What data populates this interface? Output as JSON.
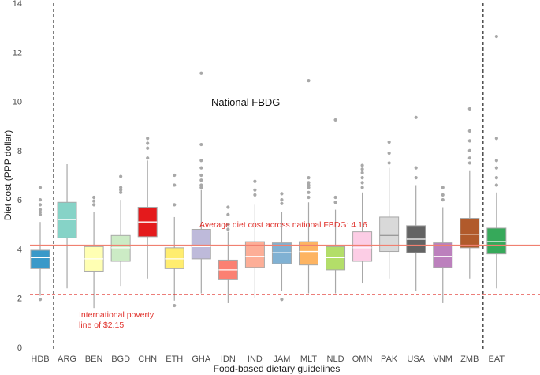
{
  "chart_data": {
    "type": "box",
    "xlabel": "Food-based dietary guidelines",
    "ylabel": "Diet cost (PPP dollar)",
    "ylim": [
      0,
      14
    ],
    "yticks": [
      0,
      2,
      4,
      6,
      8,
      10,
      12,
      14
    ],
    "grid": false,
    "categories": [
      "HDB",
      "ARG",
      "BEN",
      "BGD",
      "CHN",
      "ETH",
      "GHA",
      "IDN",
      "IND",
      "JAM",
      "MLT",
      "NLD",
      "OMN",
      "PAK",
      "USA",
      "VNM",
      "ZMB",
      "EAT"
    ],
    "boxes": [
      {
        "label": "HDB",
        "whisker_low": 2.1,
        "q1": 3.2,
        "median": 3.65,
        "q3": 3.95,
        "whisker_high": 5.1,
        "outliers": [
          1.95,
          5.4,
          5.5,
          5.6,
          5.8,
          6.0,
          6.5
        ],
        "color": "#3a99c9"
      },
      {
        "label": "ARG",
        "whisker_low": 2.4,
        "q1": 4.45,
        "median": 5.2,
        "q3": 5.9,
        "whisker_high": 7.45,
        "outliers": [],
        "color": "#86d3c7"
      },
      {
        "label": "BEN",
        "whisker_low": 1.6,
        "q1": 3.1,
        "median": 3.6,
        "q3": 4.1,
        "whisker_high": 5.5,
        "outliers": [
          5.8,
          5.95,
          6.1
        ],
        "color": "#ffffb3"
      },
      {
        "label": "BGD",
        "whisker_low": 2.5,
        "q1": 3.5,
        "median": 4.05,
        "q3": 4.55,
        "whisker_high": 6.0,
        "outliers": [
          6.3,
          6.4,
          6.5,
          6.95
        ],
        "color": "#ccebc5"
      },
      {
        "label": "CHN",
        "whisker_low": 2.8,
        "q1": 4.5,
        "median": 5.1,
        "q3": 5.7,
        "whisker_high": 7.6,
        "outliers": [
          7.7,
          8.1,
          8.3,
          8.5
        ],
        "color": "#e41a1c"
      },
      {
        "label": "ETH",
        "whisker_low": 1.9,
        "q1": 3.2,
        "median": 3.6,
        "q3": 4.05,
        "whisker_high": 5.3,
        "outliers": [
          1.7,
          5.8,
          6.6,
          7.0
        ],
        "color": "#ffed6f"
      },
      {
        "label": "GHA",
        "whisker_low": 2.2,
        "q1": 3.6,
        "median": 4.1,
        "q3": 4.8,
        "whisker_high": 6.4,
        "outliers": [
          6.5,
          6.6,
          6.8,
          7.0,
          7.3,
          7.6,
          8.25,
          11.15
        ],
        "color": "#bebada"
      },
      {
        "label": "IDN",
        "whisker_low": 1.8,
        "q1": 2.75,
        "median": 3.15,
        "q3": 3.55,
        "whisker_high": 4.7,
        "outliers": [
          4.8,
          5.0,
          5.4,
          5.7
        ],
        "color": "#fb8072"
      },
      {
        "label": "IND",
        "whisker_low": 2.0,
        "q1": 3.25,
        "median": 3.7,
        "q3": 4.3,
        "whisker_high": 5.8,
        "outliers": [
          6.2,
          6.4,
          6.75
        ],
        "color": "#fdae97"
      },
      {
        "label": "JAM",
        "whisker_low": 2.3,
        "q1": 3.4,
        "median": 3.85,
        "q3": 4.25,
        "whisker_high": 5.5,
        "outliers": [
          1.95,
          5.85,
          6.0,
          6.25
        ],
        "color": "#80b1d3"
      },
      {
        "label": "MLT",
        "whisker_low": 2.2,
        "q1": 3.35,
        "median": 3.9,
        "q3": 4.3,
        "whisker_high": 5.9,
        "outliers": [
          6.1,
          6.3,
          6.5,
          6.6,
          6.7,
          6.9,
          10.85
        ],
        "color": "#fdb462"
      },
      {
        "label": "NLD",
        "whisker_low": 2.2,
        "q1": 3.15,
        "median": 3.65,
        "q3": 4.1,
        "whisker_high": 5.6,
        "outliers": [
          5.9,
          6.1,
          9.25
        ],
        "color": "#b3de69"
      },
      {
        "label": "OMN",
        "whisker_low": 2.6,
        "q1": 3.5,
        "median": 4.05,
        "q3": 4.7,
        "whisker_high": 6.3,
        "outliers": [
          6.5,
          6.7,
          6.9,
          7.1,
          7.25,
          7.4
        ],
        "color": "#fccde5"
      },
      {
        "label": "PAK",
        "whisker_low": 2.8,
        "q1": 3.9,
        "median": 4.55,
        "q3": 5.3,
        "whisker_high": 7.3,
        "outliers": [
          7.5,
          7.9,
          8.35
        ],
        "color": "#d9d9d9"
      },
      {
        "label": "USA",
        "whisker_low": 2.3,
        "q1": 3.85,
        "median": 4.4,
        "q3": 4.95,
        "whisker_high": 6.6,
        "outliers": [
          6.9,
          7.3,
          9.35
        ],
        "color": "#636363"
      },
      {
        "label": "VNM",
        "whisker_low": 1.8,
        "q1": 3.25,
        "median": 3.7,
        "q3": 4.25,
        "whisker_high": 5.7,
        "outliers": [
          6.0,
          6.2,
          6.5
        ],
        "color": "#bc80bd"
      },
      {
        "label": "ZMB",
        "whisker_low": 2.8,
        "q1": 4.05,
        "median": 4.6,
        "q3": 5.25,
        "whisker_high": 7.2,
        "outliers": [
          7.5,
          7.7,
          8.0,
          8.4,
          8.8,
          9.7
        ],
        "color": "#b15a2b"
      },
      {
        "label": "EAT",
        "whisker_low": 2.4,
        "q1": 3.8,
        "median": 4.3,
        "q3": 4.85,
        "whisker_high": 6.3,
        "outliers": [
          6.6,
          6.9,
          7.3,
          7.6,
          8.5,
          12.65
        ],
        "color": "#36a95a"
      }
    ],
    "reference_lines": [
      {
        "name": "average",
        "value": 4.16,
        "style": "solid",
        "color": "#f08070",
        "label": "Average diet cost across national FBDG: 4.16"
      },
      {
        "name": "poverty",
        "value": 2.15,
        "style": "dashed",
        "color": "#e0302a",
        "label_lines": [
          "International poverty",
          "line of $2.15"
        ]
      }
    ],
    "separators_after": [
      "HDB",
      "ZMB"
    ],
    "annotations": [
      {
        "text": "National FBDG"
      }
    ]
  }
}
